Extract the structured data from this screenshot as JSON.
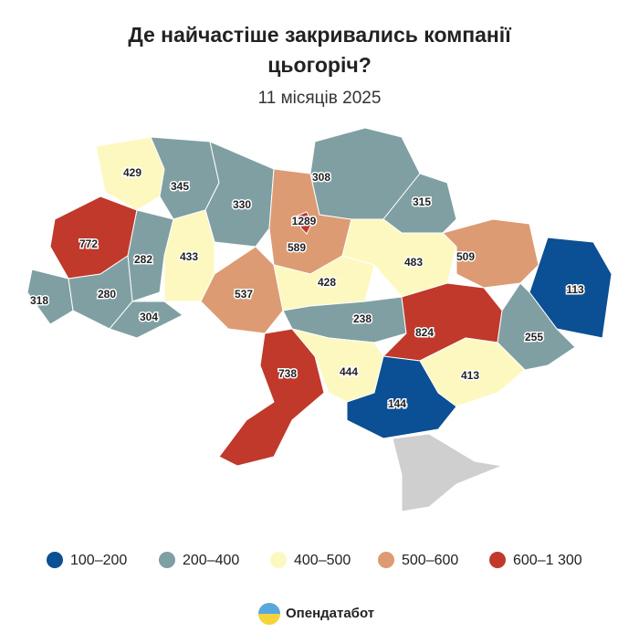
{
  "header": {
    "title": "Де найчастіше закривались компанії цьогоріч?",
    "subtitle": "11 місяців 2025"
  },
  "map": {
    "regions": [
      {
        "value": 429,
        "color": "#fdf8c0"
      },
      {
        "value": 345,
        "color": "#7f9fa3"
      },
      {
        "value": 330,
        "color": "#7f9fa3"
      },
      {
        "value": 589,
        "color": "#dd9b73"
      },
      {
        "value": 1289,
        "color": "#c0392b"
      },
      {
        "value": 308,
        "color": "#7f9fa3"
      },
      {
        "value": 315,
        "color": "#7f9fa3"
      },
      {
        "value": 772,
        "color": "#c0392b"
      },
      {
        "value": 282,
        "color": "#7f9fa3"
      },
      {
        "value": 433,
        "color": "#fdf8c0"
      },
      {
        "value": 318,
        "color": "#7f9fa3"
      },
      {
        "value": 280,
        "color": "#7f9fa3"
      },
      {
        "value": 304,
        "color": "#7f9fa3"
      },
      {
        "value": 537,
        "color": "#dd9b73"
      },
      {
        "value": 428,
        "color": "#fdf8c0"
      },
      {
        "value": 483,
        "color": "#fdf8c0"
      },
      {
        "value": 509,
        "color": "#dd9b73"
      },
      {
        "value": 113,
        "color": "#0b4f94"
      },
      {
        "value": 238,
        "color": "#7f9fa3"
      },
      {
        "value": 824,
        "color": "#c0392b"
      },
      {
        "value": 255,
        "color": "#7f9fa3"
      },
      {
        "value": 738,
        "color": "#c0392b"
      },
      {
        "value": 444,
        "color": "#fdf8c0"
      },
      {
        "value": 413,
        "color": "#fdf8c0"
      },
      {
        "value": 144,
        "color": "#0b4f94"
      }
    ]
  },
  "legend": {
    "items": [
      {
        "label": "100–200",
        "color": "#0b4f94"
      },
      {
        "label": "200–400",
        "color": "#7f9fa3"
      },
      {
        "label": "400–500",
        "color": "#fdf8c0"
      },
      {
        "label": "500–600",
        "color": "#dd9b73"
      },
      {
        "label": "600–1 300",
        "color": "#c0392b"
      }
    ]
  },
  "footer": {
    "brand": "Опендатабот"
  }
}
